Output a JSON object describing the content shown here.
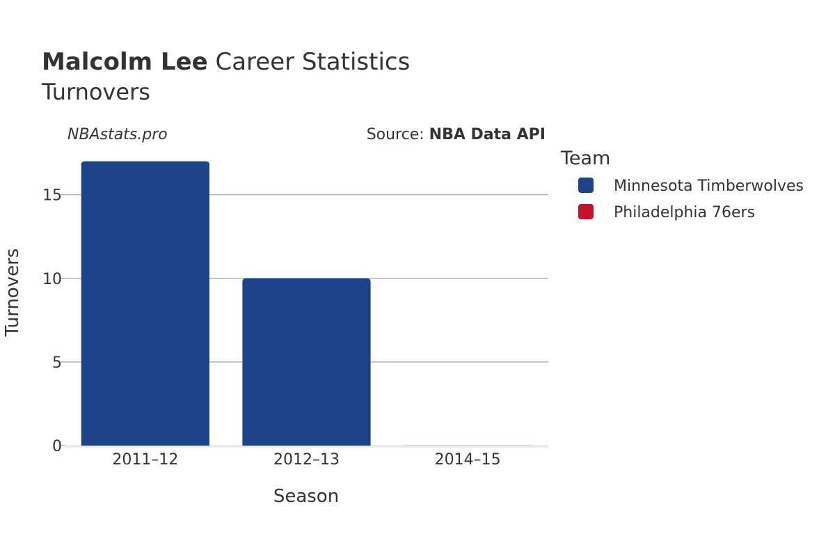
{
  "header": {
    "player_name": "Malcolm Lee",
    "title_rest": "Career Statistics",
    "subtitle": "Turnovers"
  },
  "watermark": "NBAstats.pro",
  "source": {
    "prefix": "Source: ",
    "name": "NBA Data API"
  },
  "legend": {
    "title": "Team",
    "items": [
      {
        "label": "Minnesota Timberwolves",
        "color": "#1d428a"
      },
      {
        "label": "Philadelphia 76ers",
        "color": "#c8102e"
      }
    ]
  },
  "chart_data": {
    "type": "bar",
    "xlabel": "Season",
    "ylabel": "Turnovers",
    "categories": [
      "2011–12",
      "2012–13",
      "2014–15"
    ],
    "series": [
      {
        "name": "Minnesota Timberwolves",
        "color": "#1d428a",
        "values": [
          17,
          10,
          null
        ]
      },
      {
        "name": "Philadelphia 76ers",
        "color": "#c8102e",
        "values": [
          null,
          null,
          0
        ]
      }
    ],
    "yticks": [
      0,
      5,
      10,
      15
    ],
    "ylim": [
      0,
      17.9
    ],
    "grid": true,
    "legend_position": "right"
  }
}
